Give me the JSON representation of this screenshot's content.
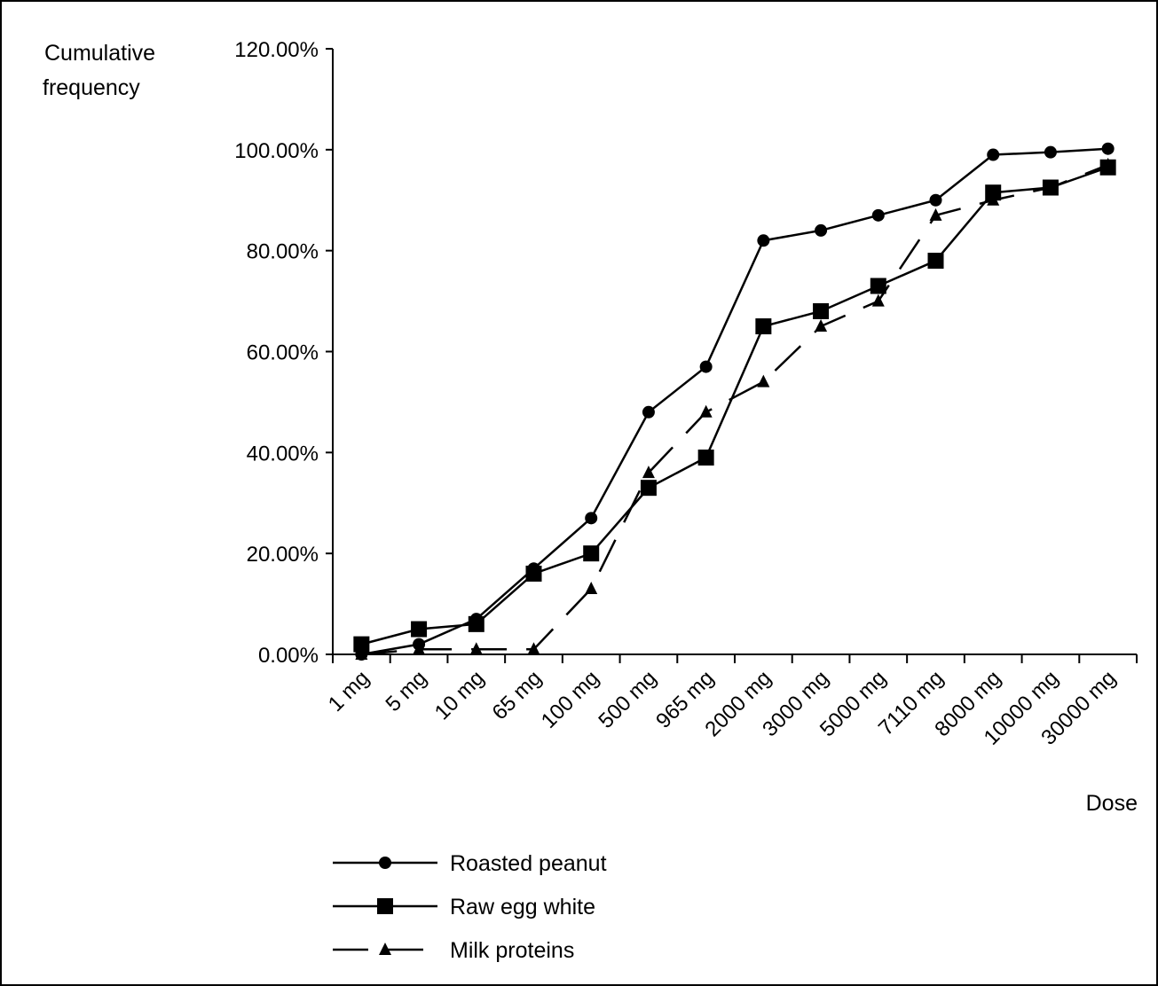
{
  "chart_data": {
    "type": "line",
    "ylabel_lines": [
      "Cumulative",
      "frequency"
    ],
    "xlabel": "Dose",
    "categories": [
      "1 mg",
      "5 mg",
      "10 mg",
      "65 mg",
      "100 mg",
      "500 mg",
      "965 mg",
      "2000 mg",
      "3000 mg",
      "5000 mg",
      "7110 mg",
      "8000 mg",
      "10000 mg",
      "30000 mg"
    ],
    "y_ticks": [
      "0.00%",
      "20.00%",
      "40.00%",
      "60.00%",
      "80.00%",
      "100.00%",
      "120.00%"
    ],
    "ylim": [
      0,
      120
    ],
    "grid": false,
    "legend_position": "bottom-left",
    "series": [
      {
        "name": "Roasted peanut",
        "marker": "circle",
        "line": "solid",
        "values": [
          0,
          2,
          7,
          17,
          27,
          48,
          57,
          82,
          84,
          87,
          90,
          99,
          99.5,
          100.2
        ]
      },
      {
        "name": "Raw egg white",
        "marker": "square",
        "line": "solid",
        "values": [
          2,
          5,
          6,
          16,
          20,
          33,
          39,
          65,
          68,
          73,
          78,
          91.5,
          92.5,
          96.5
        ]
      },
      {
        "name": "Milk proteins",
        "marker": "triangle",
        "line": "dashed",
        "values": [
          0,
          1,
          1,
          1,
          13,
          36,
          48,
          54,
          65,
          70,
          87,
          90,
          92.5,
          97
        ]
      }
    ]
  }
}
